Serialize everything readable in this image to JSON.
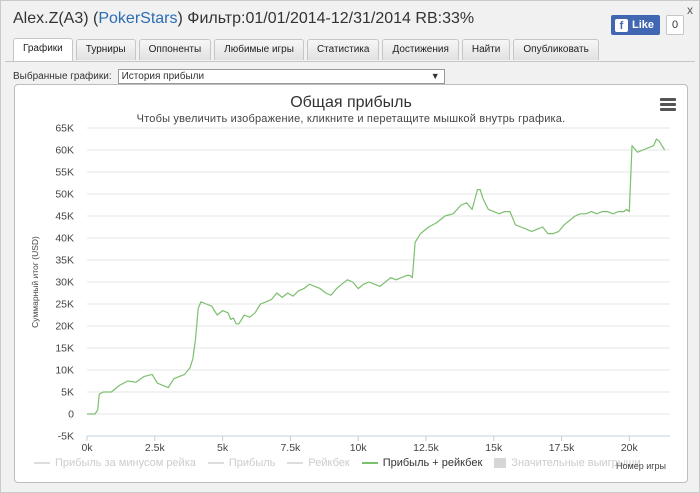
{
  "window": {
    "player": "Alex.Z(A3)",
    "site_open": " (",
    "site": "PokerStars",
    "site_close": ")",
    "filter": " Фильтр:01/01/2014-12/31/2014 RB:33%",
    "close_label": "x"
  },
  "facebook": {
    "like_label": "Like",
    "f_glyph": "f",
    "count": "0"
  },
  "tabs": [
    {
      "label": "Графики",
      "active": true
    },
    {
      "label": "Турниры",
      "active": false
    },
    {
      "label": "Оппоненты",
      "active": false
    },
    {
      "label": "Любимые игры",
      "active": false
    },
    {
      "label": "Статистика",
      "active": false
    },
    {
      "label": "Достижения",
      "active": false
    },
    {
      "label": "Найти",
      "active": false
    },
    {
      "label": "Опубликовать",
      "active": false
    }
  ],
  "graph_select": {
    "label": "Выбранные графики:",
    "value": "История прибыли",
    "arrow": "▼"
  },
  "chart_menu_icon": "hamburger-menu-icon",
  "chart_data": {
    "type": "line",
    "title": "Общая прибыль",
    "subtitle": "Чтобы увеличить изображение, кликните и перетащите мышкой внутрь графика.",
    "ylabel": "Суммарный итог (USD)",
    "xlabel": "Номер игры",
    "xlim": [
      0,
      21500
    ],
    "ylim": [
      -5000,
      65000
    ],
    "x_ticks": [
      "0k",
      "2.5k",
      "5k",
      "7.5k",
      "10k",
      "12.5k",
      "15k",
      "17.5k",
      "20k"
    ],
    "y_ticks": [
      "65K",
      "60K",
      "55K",
      "50K",
      "45K",
      "40K",
      "35K",
      "30K",
      "25K",
      "20K",
      "15K",
      "10K",
      "5K",
      "0",
      "-5K"
    ],
    "x_tick_values": [
      0,
      2500,
      5000,
      7500,
      10000,
      12500,
      15000,
      17500,
      20000
    ],
    "y_tick_values": [
      65000,
      60000,
      55000,
      50000,
      45000,
      40000,
      35000,
      30000,
      25000,
      20000,
      15000,
      10000,
      5000,
      0,
      -5000
    ],
    "legend": [
      {
        "label": "Прибыль за минусом рейка",
        "visible": false
      },
      {
        "label": "Прибыль",
        "visible": false
      },
      {
        "label": "Рейкбек",
        "visible": false
      },
      {
        "label": "Прибыль + рейкбек",
        "visible": true
      },
      {
        "label": "Значительные выигрыши",
        "visible": false,
        "marker": "box"
      }
    ],
    "series": [
      {
        "name": "Прибыль + рейкбек",
        "color": "#7cbf6e",
        "x": [
          0,
          150,
          300,
          400,
          450,
          600,
          900,
          1200,
          1500,
          1800,
          2100,
          2400,
          2600,
          2800,
          3000,
          3200,
          3400,
          3600,
          3800,
          3900,
          4000,
          4100,
          4200,
          4400,
          4600,
          4800,
          5000,
          5200,
          5300,
          5400,
          5500,
          5600,
          5800,
          6000,
          6200,
          6400,
          6600,
          6800,
          7000,
          7200,
          7400,
          7600,
          7800,
          8000,
          8200,
          8400,
          8600,
          8800,
          9000,
          9200,
          9400,
          9600,
          9800,
          10000,
          10200,
          10400,
          10600,
          10800,
          11000,
          11200,
          11400,
          11600,
          11800,
          11900,
          12000,
          12100,
          12300,
          12600,
          12900,
          13200,
          13500,
          13800,
          14000,
          14200,
          14400,
          14500,
          14600,
          14800,
          15000,
          15200,
          15400,
          15600,
          15800,
          16000,
          16200,
          16400,
          16600,
          16800,
          17000,
          17200,
          17400,
          17600,
          17800,
          18000,
          18200,
          18400,
          18600,
          18800,
          19000,
          19200,
          19400,
          19600,
          19800,
          19900,
          20000,
          20100,
          20300,
          20500,
          20700,
          20900,
          21000,
          21100,
          21300
        ],
        "y": [
          0,
          0,
          0,
          1000,
          4500,
          5000,
          5000,
          6500,
          7500,
          7200,
          8500,
          9000,
          7000,
          6500,
          6000,
          8000,
          8500,
          9000,
          10500,
          12500,
          17000,
          24000,
          25500,
          25000,
          24500,
          22500,
          23500,
          23000,
          21500,
          21800,
          20500,
          20500,
          22500,
          22000,
          23000,
          25000,
          25500,
          26000,
          27500,
          26500,
          27500,
          26800,
          28000,
          28500,
          29500,
          29000,
          28500,
          27500,
          27000,
          28500,
          29500,
          30500,
          30000,
          28500,
          29500,
          30000,
          29500,
          29000,
          30000,
          31000,
          30500,
          31000,
          31500,
          31500,
          31000,
          39000,
          41000,
          42500,
          43500,
          45000,
          45500,
          47500,
          48000,
          46500,
          51000,
          51000,
          49000,
          46500,
          46000,
          45500,
          46000,
          46000,
          43000,
          42500,
          42000,
          41500,
          42000,
          42500,
          41000,
          41000,
          41500,
          43000,
          44000,
          45000,
          45500,
          45500,
          46000,
          45500,
          46000,
          46000,
          45500,
          46000,
          46000,
          46500,
          46000,
          61000,
          59500,
          60000,
          60500,
          61000,
          62500,
          62000,
          60000
        ]
      }
    ]
  }
}
